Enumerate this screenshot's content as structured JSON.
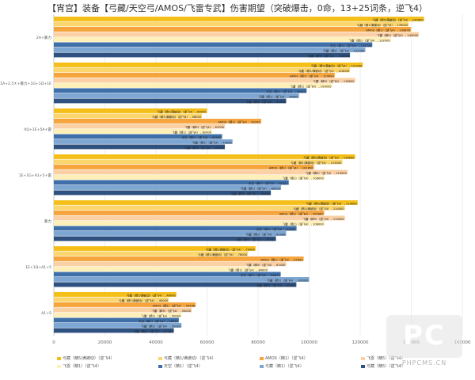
{
  "title": "【宵宫】装备【弓藏/天空弓/AMOS/飞雷专武】伤害期望（突破爆击，0命，13+25词条，逆飞4）",
  "colors": [
    "#f5bf1a",
    "#fbd56e",
    "#f6a53e",
    "#fad0a4",
    "#fff0ba",
    "#3f6fa8",
    "#7ea6d3",
    "#2e5180"
  ],
  "chart_data": {
    "type": "bar",
    "orientation": "horizontal",
    "xlim": [
      0,
      160000
    ],
    "ticks": [
      0,
      20000,
      40000,
      60000,
      80000,
      100000,
      120000,
      140000,
      160000
    ],
    "tick_labels": [
      "0",
      "20000",
      "40000",
      "60000",
      "80000",
      "100000",
      "120000",
      "140000",
      "160000"
    ],
    "grid": true,
    "legend_position": "bottom",
    "categories": [
      "2A+暴力",
      "1E1Q+1A+2.5ㅊ+暴力+1G+1Q+1E",
      "0Q+1E+5A+雷",
      "1E+1G+A1+5+雷",
      "暴力",
      "1E+1Q+A1+5",
      "A1+5"
    ],
    "series": [
      {
        "name": "弓藏（精5/满被动）（逆飞4）",
        "label": "弓藏（精5/满被动）（逆飞4）",
        "values": [
          145000,
          121000,
          60000,
          118000,
          119000,
          79000,
          48000
        ]
      },
      {
        "name": "弓藏（精1/满被动）（逆飞4）",
        "label": "弓藏（精1/满被动）（逆飞4）",
        "values": [
          139000,
          116000,
          58000,
          113000,
          114000,
          76000,
          45000
        ]
      },
      {
        "name": "AMOS（精1）（逆飞4）",
        "label": "AMOS（精1）（逆飞4）",
        "values": [
          139878,
          110000,
          81241,
          101850,
          105887,
          97852,
          55556
        ]
      },
      {
        "name": "飞雷（精5）（逆飞4）",
        "label": "飞雷（精5）（逆飞4）",
        "values": [
          143000,
          118000,
          67000,
          115000,
          114000,
          91000,
          54000
        ]
      },
      {
        "name": "飞雷（精1）（逆飞4）",
        "label": "飞雷（精1）（逆飞4）",
        "values": [
          132000,
          109000,
          62000,
          106000,
          106000,
          84000,
          50000
        ]
      },
      {
        "name": "天空（精1）（逆飞4）",
        "label": "天空（精1）（逆飞4）",
        "values": [
          124725,
          99012,
          65900,
          92021,
          95067,
          88875,
          48952
        ]
      },
      {
        "name": "弓藏（精1）（逆飞4）",
        "label": "弓藏（精1）（逆飞4）",
        "values": [
          122000,
          96000,
          70000,
          89000,
          91000,
          100000,
          50000
        ]
      },
      {
        "name": "弓藏（精5）（逆飞4）",
        "label": "弓藏（精5）（逆飞4）",
        "values": [
          116000,
          91000,
          67000,
          85000,
          87000,
          95000,
          47000
        ]
      }
    ]
  },
  "watermark": {
    "logo": "PC",
    "text": "PHPCMS.CN"
  }
}
